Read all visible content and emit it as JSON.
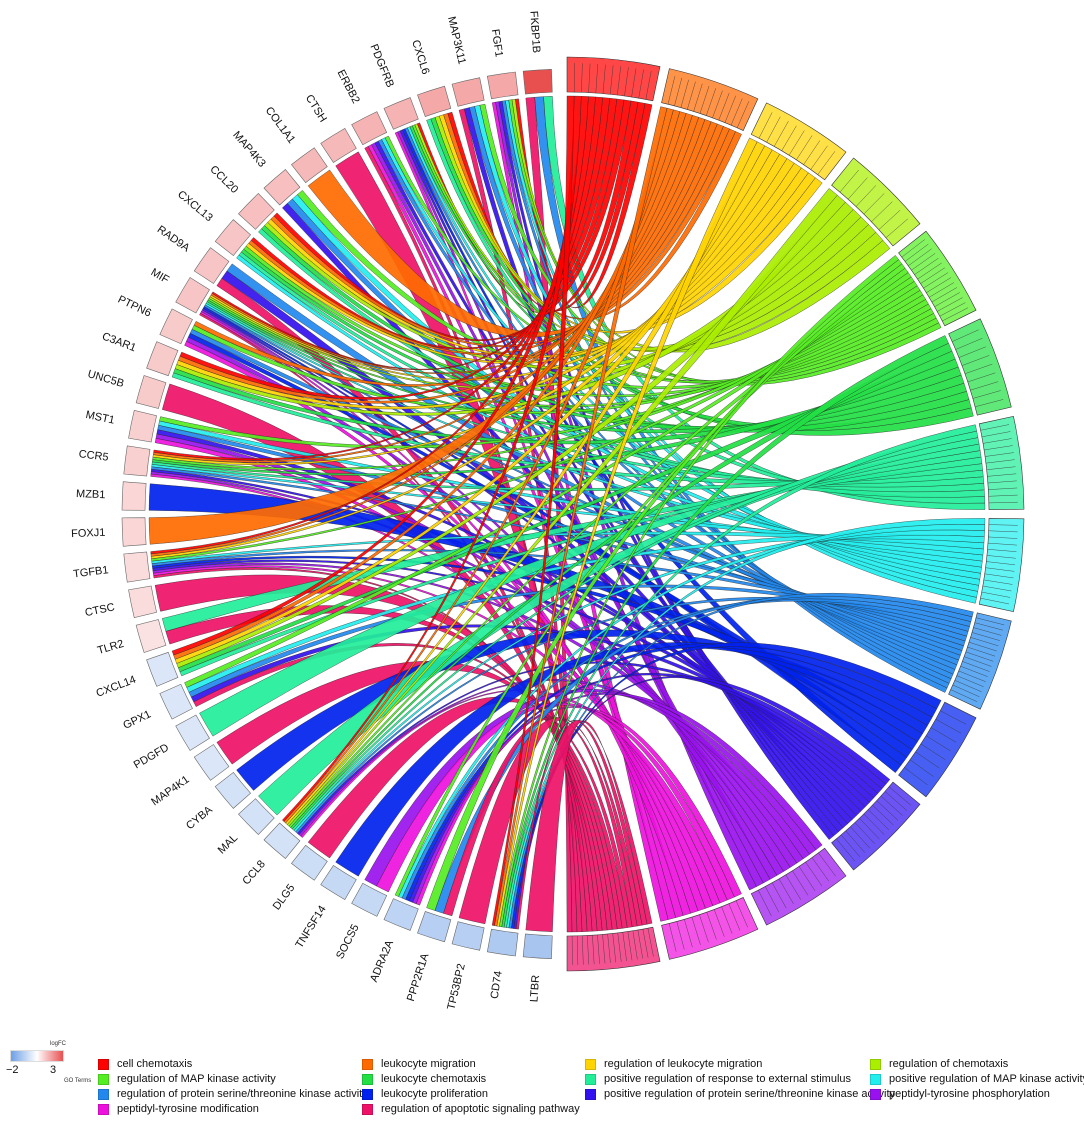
{
  "chart_data": {
    "type": "chord",
    "genes": [
      {
        "name": "FKBP1B",
        "logFC": 3.0
      },
      {
        "name": "FGF1",
        "logFC": 1.5
      },
      {
        "name": "MAP3K11",
        "logFC": 1.5
      },
      {
        "name": "CXCL6",
        "logFC": 1.5
      },
      {
        "name": "PDGFRB",
        "logFC": 1.3
      },
      {
        "name": "ERBB2",
        "logFC": 1.3
      },
      {
        "name": "CTSH",
        "logFC": 1.2
      },
      {
        "name": "COL1A1",
        "logFC": 1.2
      },
      {
        "name": "MAP4K3",
        "logFC": 1.1
      },
      {
        "name": "CCL20",
        "logFC": 1.1
      },
      {
        "name": "CXCL13",
        "logFC": 1.0
      },
      {
        "name": "RAD9A",
        "logFC": 1.0
      },
      {
        "name": "MIF",
        "logFC": 1.0
      },
      {
        "name": "PTPN6",
        "logFC": 0.9
      },
      {
        "name": "C3AR1",
        "logFC": 0.9
      },
      {
        "name": "UNC5B",
        "logFC": 0.9
      },
      {
        "name": "MST1",
        "logFC": 0.8
      },
      {
        "name": "CCR5",
        "logFC": 0.8
      },
      {
        "name": "MZB1",
        "logFC": 0.7
      },
      {
        "name": "FOXJ1",
        "logFC": 0.7
      },
      {
        "name": "TGFB1",
        "logFC": 0.6
      },
      {
        "name": "CTSC",
        "logFC": 0.6
      },
      {
        "name": "TLR2",
        "logFC": 0.5
      },
      {
        "name": "CXCL14",
        "logFC": -0.5
      },
      {
        "name": "GPX1",
        "logFC": -0.5
      },
      {
        "name": "PDGFD",
        "logFC": -0.5
      },
      {
        "name": "MAP4K1",
        "logFC": -0.5
      },
      {
        "name": "CYBA",
        "logFC": -0.6
      },
      {
        "name": "MAL",
        "logFC": -0.6
      },
      {
        "name": "CCL8",
        "logFC": -0.6
      },
      {
        "name": "DLG5",
        "logFC": -0.7
      },
      {
        "name": "TNFSF14",
        "logFC": -0.8
      },
      {
        "name": "SOCS5",
        "logFC": -0.8
      },
      {
        "name": "ADRA2A",
        "logFC": -0.9
      },
      {
        "name": "PPP2R1A",
        "logFC": -1.0
      },
      {
        "name": "TP53BP2",
        "logFC": -1.0
      },
      {
        "name": "CD74",
        "logFC": -1.1
      },
      {
        "name": "LTBR",
        "logFC": -1.2
      }
    ],
    "terms": [
      {
        "name": "cell chemotaxis",
        "color": "#ff0000"
      },
      {
        "name": "leukocyte migration",
        "color": "#ff6a00"
      },
      {
        "name": "regulation of leukocyte migration",
        "color": "#ffd400"
      },
      {
        "name": "regulation of chemotaxis",
        "color": "#aaee00"
      },
      {
        "name": "regulation of MAP kinase activity",
        "color": "#55ee22"
      },
      {
        "name": "leukocyte chemotaxis",
        "color": "#22e044"
      },
      {
        "name": "positive regulation of response to external stimulus",
        "color": "#22ee99"
      },
      {
        "name": "positive regulation of MAP kinase activity",
        "color": "#22eeee"
      },
      {
        "name": "regulation of protein serine/threonine kinase activity",
        "color": "#2288ee"
      },
      {
        "name": "leukocyte proliferation",
        "color": "#0022ee"
      },
      {
        "name": "positive regulation of protein serine/threonine kinase activity",
        "color": "#3311ee"
      },
      {
        "name": "peptidyl-tyrosine phosphorylation",
        "color": "#9911ee"
      },
      {
        "name": "peptidyl-tyrosine modification",
        "color": "#ee11dd"
      },
      {
        "name": "regulation of apoptotic signaling pathway",
        "color": "#ee1166"
      }
    ],
    "links": [
      [
        "FKBP1B",
        "positive regulation of response to external stimulus"
      ],
      [
        "FKBP1B",
        "regulation of protein serine/threonine kinase activity"
      ],
      [
        "FKBP1B",
        "regulation of apoptotic signaling pathway"
      ],
      [
        "FGF1",
        "cell chemotaxis"
      ],
      [
        "FGF1",
        "regulation of chemotaxis"
      ],
      [
        "FGF1",
        "regulation of MAP kinase activity"
      ],
      [
        "FGF1",
        "positive regulation of MAP kinase activity"
      ],
      [
        "FGF1",
        "regulation of protein serine/threonine kinase activity"
      ],
      [
        "FGF1",
        "positive regulation of protein serine/threonine kinase activity"
      ],
      [
        "FGF1",
        "peptidyl-tyrosine phosphorylation"
      ],
      [
        "FGF1",
        "peptidyl-tyrosine modification"
      ],
      [
        "MAP3K11",
        "regulation of MAP kinase activity"
      ],
      [
        "MAP3K11",
        "positive regulation of MAP kinase activity"
      ],
      [
        "MAP3K11",
        "regulation of protein serine/threonine kinase activity"
      ],
      [
        "MAP3K11",
        "positive regulation of protein serine/threonine kinase activity"
      ],
      [
        "MAP3K11",
        "regulation of apoptotic signaling pathway"
      ],
      [
        "CXCL6",
        "cell chemotaxis"
      ],
      [
        "CXCL6",
        "leukocyte migration"
      ],
      [
        "CXCL6",
        "regulation of leukocyte migration"
      ],
      [
        "CXCL6",
        "regulation of chemotaxis"
      ],
      [
        "CXCL6",
        "leukocyte chemotaxis"
      ],
      [
        "CXCL6",
        "positive regulation of response to external stimulus"
      ],
      [
        "PDGFRB",
        "cell chemotaxis"
      ],
      [
        "PDGFRB",
        "regulation of chemotaxis"
      ],
      [
        "PDGFRB",
        "regulation of MAP kinase activity"
      ],
      [
        "PDGFRB",
        "leukocyte chemotaxis"
      ],
      [
        "PDGFRB",
        "positive regulation of MAP kinase activity"
      ],
      [
        "PDGFRB",
        "regulation of protein serine/threonine kinase activity"
      ],
      [
        "PDGFRB",
        "leukocyte proliferation"
      ],
      [
        "PDGFRB",
        "positive regulation of protein serine/threonine kinase activity"
      ],
      [
        "PDGFRB",
        "peptidyl-tyrosine phosphorylation"
      ],
      [
        "PDGFRB",
        "peptidyl-tyrosine modification"
      ],
      [
        "ERBB2",
        "regulation of MAP kinase activity"
      ],
      [
        "ERBB2",
        "positive regulation of MAP kinase activity"
      ],
      [
        "ERBB2",
        "regulation of protein serine/threonine kinase activity"
      ],
      [
        "ERBB2",
        "positive regulation of protein serine/threonine kinase activity"
      ],
      [
        "ERBB2",
        "peptidyl-tyrosine phosphorylation"
      ],
      [
        "ERBB2",
        "peptidyl-tyrosine modification"
      ],
      [
        "ERBB2",
        "regulation of apoptotic signaling pathway"
      ],
      [
        "CTSH",
        "regulation of apoptotic signaling pathway"
      ],
      [
        "COL1A1",
        "leukocyte migration"
      ],
      [
        "MAP4K3",
        "regulation of MAP kinase activity"
      ],
      [
        "MAP4K3",
        "positive regulation of MAP kinase activity"
      ],
      [
        "MAP4K3",
        "regulation of protein serine/threonine kinase activity"
      ],
      [
        "MAP4K3",
        "positive regulation of protein serine/threonine kinase activity"
      ],
      [
        "CCL20",
        "cell chemotaxis"
      ],
      [
        "CCL20",
        "leukocyte migration"
      ],
      [
        "CCL20",
        "regulation of leukocyte migration"
      ],
      [
        "CCL20",
        "regulation of chemotaxis"
      ],
      [
        "CCL20",
        "leukocyte chemotaxis"
      ],
      [
        "CCL20",
        "positive regulation of response to external stimulus"
      ],
      [
        "CXCL13",
        "cell chemotaxis"
      ],
      [
        "CXCL13",
        "leukocyte migration"
      ],
      [
        "CXCL13",
        "regulation of leukocyte migration"
      ],
      [
        "CXCL13",
        "leukocyte chemotaxis"
      ],
      [
        "CXCL13",
        "positive regulation of response to external stimulus"
      ],
      [
        "CXCL13",
        "regulation of MAP kinase activity"
      ],
      [
        "CXCL13",
        "positive regulation of MAP kinase activity"
      ],
      [
        "RAD9A",
        "regulation of protein serine/threonine kinase activity"
      ],
      [
        "RAD9A",
        "positive regulation of protein serine/threonine kinase activity"
      ],
      [
        "RAD9A",
        "regulation of apoptotic signaling pathway"
      ],
      [
        "MIF",
        "cell chemotaxis"
      ],
      [
        "MIF",
        "leukocyte migration"
      ],
      [
        "MIF",
        "regulation of leukocyte migration"
      ],
      [
        "MIF",
        "regulation of chemotaxis"
      ],
      [
        "MIF",
        "regulation of MAP kinase activity"
      ],
      [
        "MIF",
        "leukocyte chemotaxis"
      ],
      [
        "MIF",
        "positive regulation of response to external stimulus"
      ],
      [
        "MIF",
        "positive regulation of MAP kinase activity"
      ],
      [
        "MIF",
        "regulation of protein serine/threonine kinase activity"
      ],
      [
        "MIF",
        "leukocyte proliferation"
      ],
      [
        "MIF",
        "positive regulation of protein serine/threonine kinase activity"
      ],
      [
        "MIF",
        "peptidyl-tyrosine phosphorylation"
      ],
      [
        "MIF",
        "peptidyl-tyrosine modification"
      ],
      [
        "MIF",
        "regulation of apoptotic signaling pathway"
      ],
      [
        "PTPN6",
        "leukocyte migration"
      ],
      [
        "PTPN6",
        "regulation of MAP kinase activity"
      ],
      [
        "PTPN6",
        "regulation of protein serine/threonine kinase activity"
      ],
      [
        "PTPN6",
        "leukocyte proliferation"
      ],
      [
        "PTPN6",
        "peptidyl-tyrosine phosphorylation"
      ],
      [
        "PTPN6",
        "peptidyl-tyrosine modification"
      ],
      [
        "C3AR1",
        "cell chemotaxis"
      ],
      [
        "C3AR1",
        "leukocyte migration"
      ],
      [
        "C3AR1",
        "regulation of leukocyte migration"
      ],
      [
        "C3AR1",
        "regulation of chemotaxis"
      ],
      [
        "C3AR1",
        "leukocyte chemotaxis"
      ],
      [
        "C3AR1",
        "positive regulation of response to external stimulus"
      ],
      [
        "UNC5B",
        "regulation of apoptotic signaling pathway"
      ],
      [
        "MST1",
        "regulation of MAP kinase activity"
      ],
      [
        "MST1",
        "positive regulation of MAP kinase activity"
      ],
      [
        "MST1",
        "regulation of protein serine/threonine kinase activity"
      ],
      [
        "MST1",
        "positive regulation of protein serine/threonine kinase activity"
      ],
      [
        "MST1",
        "peptidyl-tyrosine phosphorylation"
      ],
      [
        "MST1",
        "peptidyl-tyrosine modification"
      ],
      [
        "CCR5",
        "cell chemotaxis"
      ],
      [
        "CCR5",
        "leukocyte migration"
      ],
      [
        "CCR5",
        "regulation of leukocyte migration"
      ],
      [
        "CCR5",
        "leukocyte chemotaxis"
      ],
      [
        "CCR5",
        "positive regulation of response to external stimulus"
      ],
      [
        "CCR5",
        "regulation of MAP kinase activity"
      ],
      [
        "CCR5",
        "positive regulation of MAP kinase activity"
      ],
      [
        "CCR5",
        "regulation of protein serine/threonine kinase activity"
      ],
      [
        "CCR5",
        "positive regulation of protein serine/threonine kinase activity"
      ],
      [
        "CCR5",
        "peptidyl-tyrosine phosphorylation"
      ],
      [
        "CCR5",
        "peptidyl-tyrosine modification"
      ],
      [
        "MZB1",
        "leukocyte proliferation"
      ],
      [
        "FOXJ1",
        "leukocyte migration"
      ],
      [
        "TGFB1",
        "cell chemotaxis"
      ],
      [
        "TGFB1",
        "leukocyte migration"
      ],
      [
        "TGFB1",
        "regulation of leukocyte migration"
      ],
      [
        "TGFB1",
        "regulation of MAP kinase activity"
      ],
      [
        "TGFB1",
        "positive regulation of MAP kinase activity"
      ],
      [
        "TGFB1",
        "regulation of protein serine/threonine kinase activity"
      ],
      [
        "TGFB1",
        "leukocyte proliferation"
      ],
      [
        "TGFB1",
        "positive regulation of protein serine/threonine kinase activity"
      ],
      [
        "TGFB1",
        "peptidyl-tyrosine phosphorylation"
      ],
      [
        "TGFB1",
        "peptidyl-tyrosine modification"
      ],
      [
        "TGFB1",
        "regulation of apoptotic signaling pathway"
      ],
      [
        "CTSC",
        "regulation of apoptotic signaling pathway"
      ],
      [
        "TLR2",
        "positive regulation of response to external stimulus"
      ],
      [
        "TLR2",
        "regulation of apoptotic signaling pathway"
      ],
      [
        "CXCL14",
        "cell chemotaxis"
      ],
      [
        "CXCL14",
        "leukocyte migration"
      ],
      [
        "CXCL14",
        "regulation of leukocyte migration"
      ],
      [
        "CXCL14",
        "leukocyte chemotaxis"
      ],
      [
        "CXCL14",
        "positive regulation of response to external stimulus"
      ],
      [
        "CXCL14",
        "regulation of chemotaxis"
      ],
      [
        "GPX1",
        "regulation of MAP kinase activity"
      ],
      [
        "GPX1",
        "positive regulation of MAP kinase activity"
      ],
      [
        "GPX1",
        "regulation of protein serine/threonine kinase activity"
      ],
      [
        "GPX1",
        "positive regulation of protein serine/threonine kinase activity"
      ],
      [
        "GPX1",
        "regulation of apoptotic signaling pathway"
      ],
      [
        "PDGFD",
        "positive regulation of response to external stimulus"
      ],
      [
        "MAP4K1",
        "regulation of apoptotic signaling pathway"
      ],
      [
        "CYBA",
        "leukocyte proliferation"
      ],
      [
        "MAL",
        "positive regulation of response to external stimulus"
      ],
      [
        "CCL8",
        "cell chemotaxis"
      ],
      [
        "CCL8",
        "leukocyte migration"
      ],
      [
        "CCL8",
        "regulation of leukocyte migration"
      ],
      [
        "CCL8",
        "regulation of chemotaxis"
      ],
      [
        "CCL8",
        "leukocyte chemotaxis"
      ],
      [
        "CCL8",
        "positive regulation of response to external stimulus"
      ],
      [
        "CCL8",
        "regulation of MAP kinase activity"
      ],
      [
        "CCL8",
        "positive regulation of MAP kinase activity"
      ],
      [
        "CCL8",
        "regulation of protein serine/threonine kinase activity"
      ],
      [
        "CCL8",
        "positive regulation of protein serine/threonine kinase activity"
      ],
      [
        "CCL8",
        "peptidyl-tyrosine phosphorylation"
      ],
      [
        "CCL8",
        "peptidyl-tyrosine modification"
      ],
      [
        "DLG5",
        "regulation of apoptotic signaling pathway"
      ],
      [
        "TNFSF14",
        "leukocyte proliferation"
      ],
      [
        "SOCS5",
        "peptidyl-tyrosine phosphorylation"
      ],
      [
        "SOCS5",
        "peptidyl-tyrosine modification"
      ],
      [
        "ADRA2A",
        "regulation of MAP kinase activity"
      ],
      [
        "ADRA2A",
        "positive regulation of MAP kinase activity"
      ],
      [
        "ADRA2A",
        "regulation of protein serine/threonine kinase activity"
      ],
      [
        "ADRA2A",
        "positive regulation of protein serine/threonine kinase activity"
      ],
      [
        "ADRA2A",
        "peptidyl-tyrosine phosphorylation"
      ],
      [
        "ADRA2A",
        "peptidyl-tyrosine modification"
      ],
      [
        "ADRA2A",
        "leukocyte proliferation"
      ],
      [
        "PPP2R1A",
        "regulation of MAP kinase activity"
      ],
      [
        "PPP2R1A",
        "regulation of protein serine/threonine kinase activity"
      ],
      [
        "PPP2R1A",
        "regulation of apoptotic signaling pathway"
      ],
      [
        "TP53BP2",
        "regulation of apoptotic signaling pathway"
      ],
      [
        "CD74",
        "cell chemotaxis"
      ],
      [
        "CD74",
        "leukocyte migration"
      ],
      [
        "CD74",
        "regulation of leukocyte migration"
      ],
      [
        "CD74",
        "leukocyte chemotaxis"
      ],
      [
        "CD74",
        "positive regulation of response to external stimulus"
      ],
      [
        "CD74",
        "regulation of MAP kinase activity"
      ],
      [
        "CD74",
        "positive regulation of MAP kinase activity"
      ],
      [
        "CD74",
        "regulation of protein serine/threonine kinase activity"
      ],
      [
        "CD74",
        "positive regulation of protein serine/threonine kinase activity"
      ],
      [
        "CD74",
        "leukocyte proliferation"
      ],
      [
        "CD74",
        "regulation of apoptotic signaling pathway"
      ],
      [
        "LTBR",
        "regulation of apoptotic signaling pathway"
      ]
    ]
  },
  "legend": {
    "logfc_title": "logFC",
    "logfc_min": "−2",
    "logfc_max": "3",
    "logfc_colors": {
      "low": "#6e9fe6",
      "mid": "#ffffff",
      "high": "#e85050"
    },
    "go_title": "GO Terms"
  }
}
